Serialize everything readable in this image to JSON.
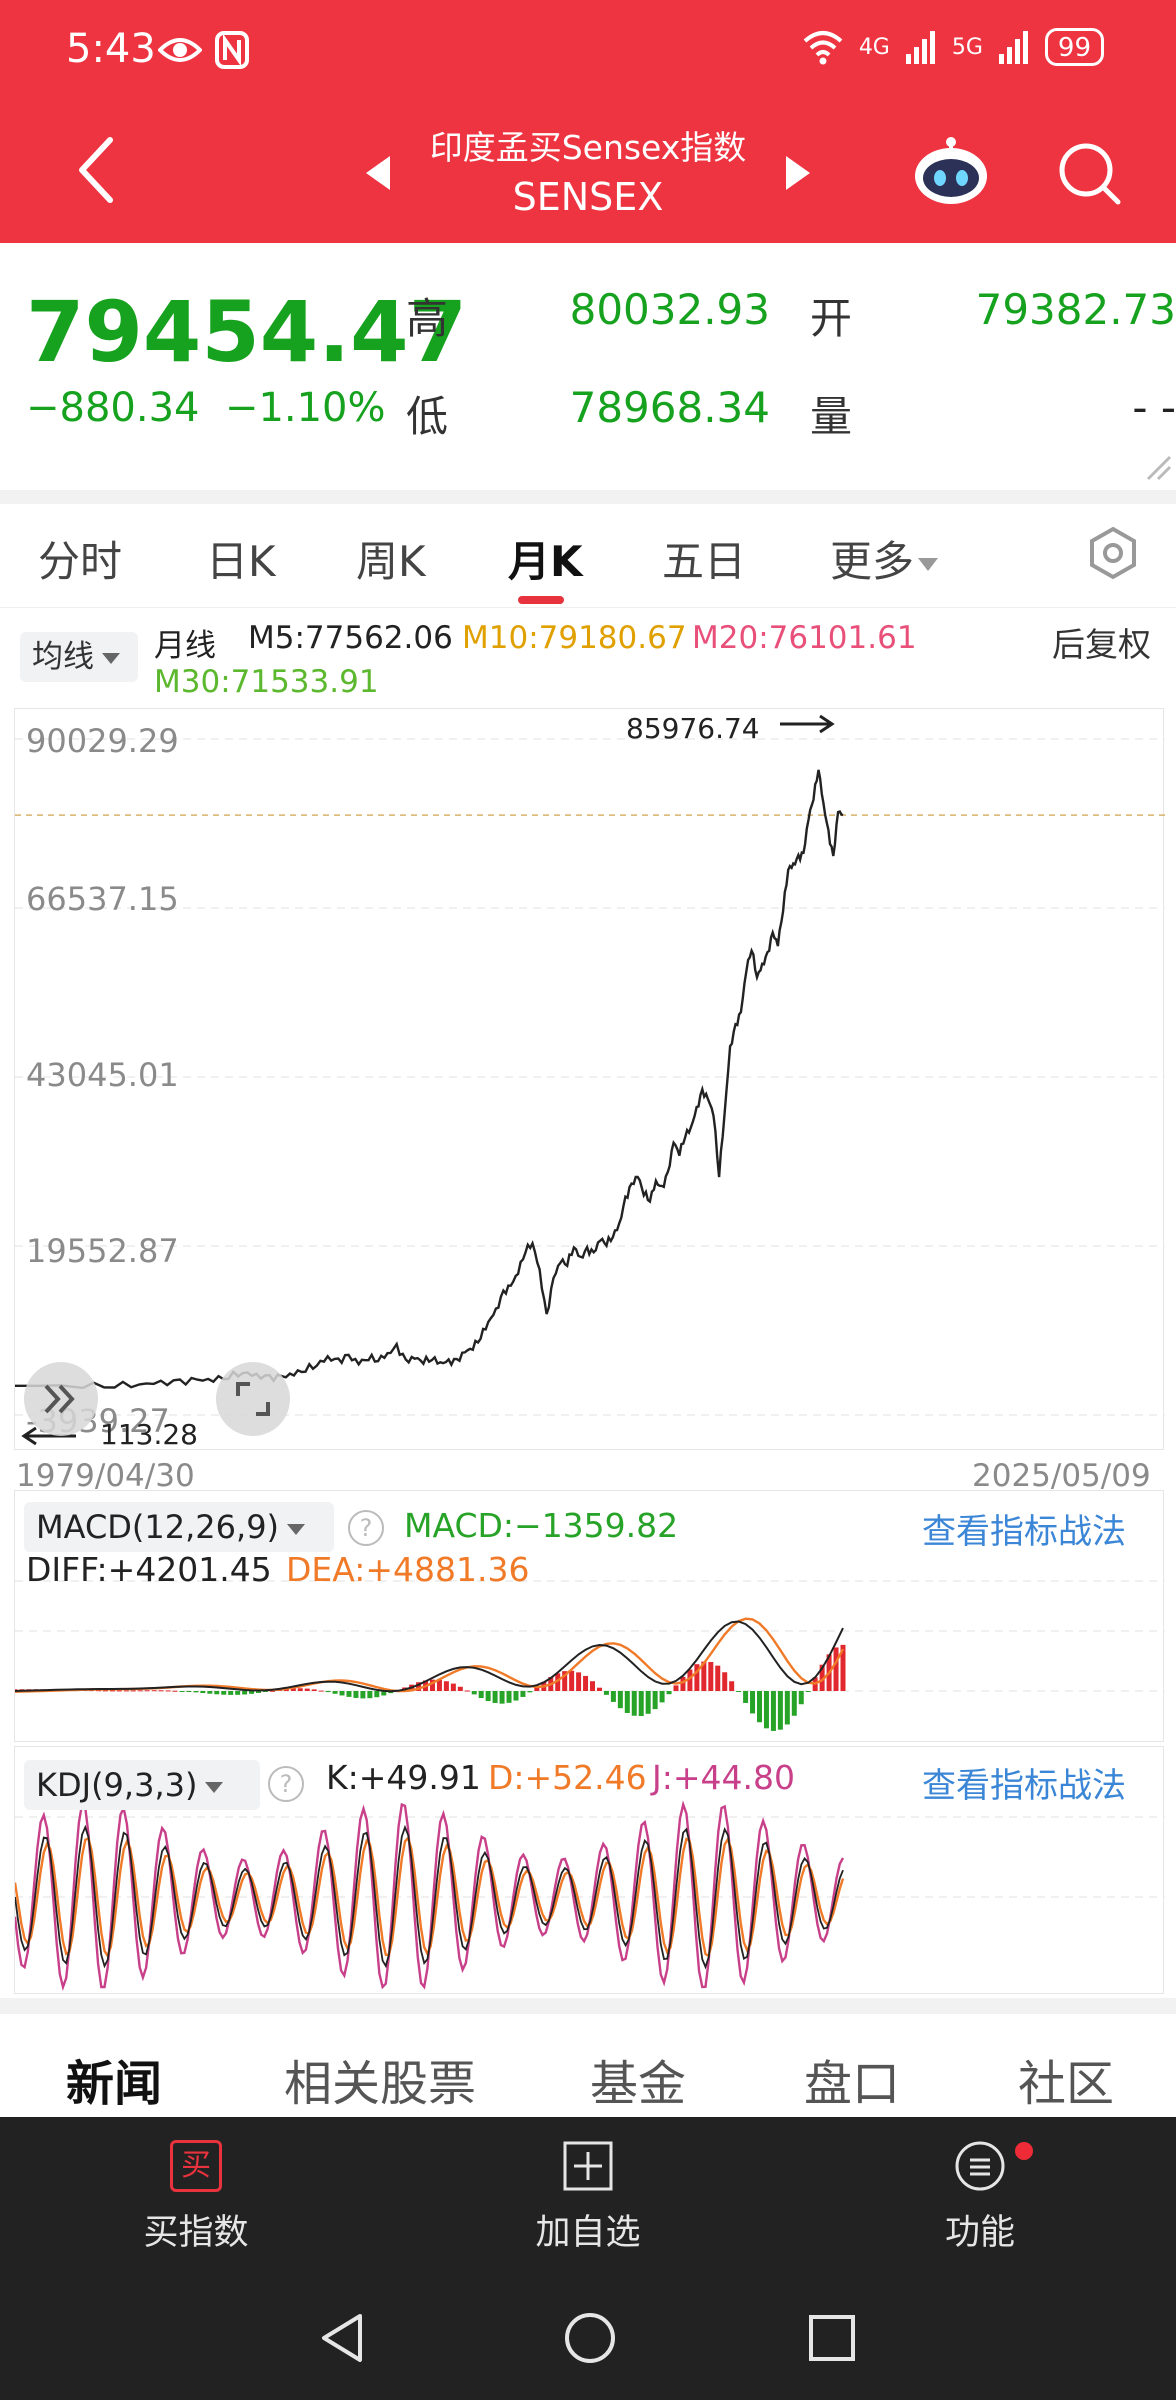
{
  "status_bar": {
    "time": "5:43",
    "battery": "99",
    "net1": "4G",
    "net2": "5G"
  },
  "header": {
    "title": "印度孟买Sensex指数",
    "subtitle": "SENSEX"
  },
  "quote": {
    "price": "79454.47",
    "change": "−880.34",
    "change_pct": "−1.10%",
    "high_label": "高",
    "high": "80032.93",
    "open_label": "开",
    "open": "79382.73",
    "low_label": "低",
    "low": "78968.34",
    "volume_label": "量",
    "volume": "- -"
  },
  "tabs": [
    {
      "label": "分时"
    },
    {
      "label": "日K"
    },
    {
      "label": "周K"
    },
    {
      "label": "月K",
      "active": true
    },
    {
      "label": "五日"
    },
    {
      "label": "更多"
    }
  ],
  "ma": {
    "dropdown": "均线",
    "period": "月线",
    "m5": "M5:77562.06",
    "m10": "M10:79180.67",
    "m20": "M20:76101.61",
    "m30": "M30:71533.91",
    "adjust": "后复权",
    "colors": {
      "m5": "#222222",
      "m10": "#e0a000",
      "m20": "#e8507a",
      "m30": "#5cb82e"
    }
  },
  "chart_data": {
    "type": "line",
    "y_ticks": [
      "90029.29",
      "66537.15",
      "43045.01",
      "19552.87",
      "-3939.27"
    ],
    "x_start": "1979/04/30",
    "x_end": "2025/05/09",
    "max_label": "85976.74",
    "min_label": "113.28",
    "ylim": [
      -3939.27,
      90029.29
    ],
    "reference_line": 79454.47,
    "series": [
      {
        "values": [
          113,
          180,
          250,
          350,
          500,
          600,
          900,
          1000,
          1500,
          2000,
          1500,
          1200,
          1300,
          1800,
          2500,
          3100,
          4000,
          3500,
          4200,
          3300,
          4100,
          3800,
          4500,
          5500,
          3500,
          4000,
          3600,
          4000,
          3300,
          3400,
          3500,
          4800,
          5500,
          7000,
          9000,
          10500,
          13000,
          14000,
          16000,
          19000,
          20000,
          16000,
          9700,
          15000,
          17500,
          17200,
          19500,
          17800,
          19000,
          18500,
          20500,
          20000,
          21000,
          22500,
          26000,
          28000,
          29300,
          27000,
          26000,
          28500,
          27500,
          29500,
          34000,
          32500,
          35000,
          36000,
          38500,
          41000,
          40000,
          38000,
          29500,
          38000,
          47000,
          50000,
          52000,
          58000,
          61000,
          57000,
          58500,
          60000,
          63000,
          61500,
          66500,
          72000,
          72500,
          73500,
          74000,
          79000,
          82000,
          85976,
          81000,
          77000,
          73500,
          80000,
          79454
        ]
      }
    ]
  },
  "macd": {
    "label": "MACD(12,26,9)",
    "macd": "MACD:−1359.82",
    "diff": "DIFF:+4201.45",
    "dea": "DEA:+4881.36",
    "link": "查看指标战法",
    "colors": {
      "diff": "#222222",
      "dea": "#f07a28",
      "up": "#e0282e",
      "down": "#27a328"
    }
  },
  "kdj": {
    "label": "KDJ(9,3,3)",
    "k": "K:+49.91",
    "d": "D:+52.46",
    "j": "J:+44.80",
    "link": "查看指标战法",
    "colors": {
      "k": "#222222",
      "d": "#f07a28",
      "j": "#c8408a"
    }
  },
  "news_tabs": [
    {
      "label": "新闻",
      "active": true
    },
    {
      "label": "相关股票"
    },
    {
      "label": "基金"
    },
    {
      "label": "盘口"
    },
    {
      "label": "社区"
    }
  ],
  "bottom_bar": {
    "buy": "买指数",
    "buy_icon": "买",
    "watch": "加自选",
    "func": "功能"
  }
}
